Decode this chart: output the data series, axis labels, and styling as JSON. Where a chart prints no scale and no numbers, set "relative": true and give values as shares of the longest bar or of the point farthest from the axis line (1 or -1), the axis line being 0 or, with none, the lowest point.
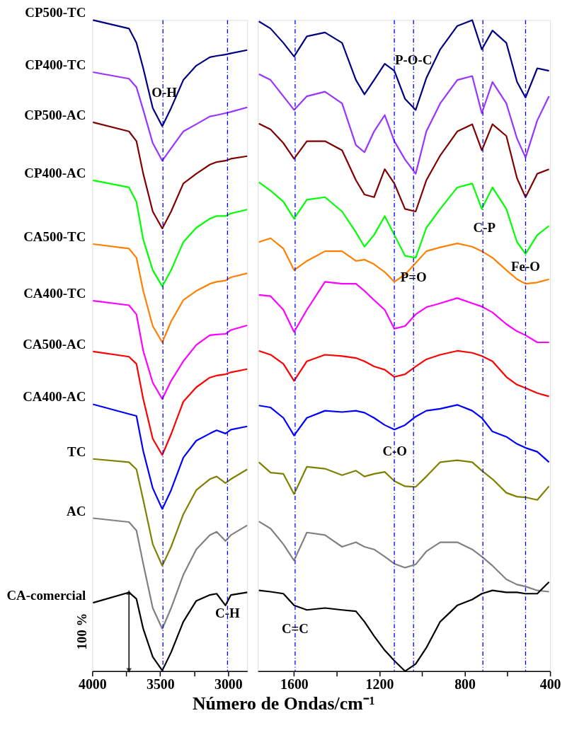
{
  "chart_data": [
    {
      "type": "line",
      "relative": true,
      "xlabel": "Número de Ondas/cm⁻¹",
      "tick_labels": "x",
      "xlim": [
        4000,
        2860
      ],
      "xticks": [
        4000,
        {
          "value": 3750,
          "label": null
        },
        3500,
        {
          "value": 3250,
          "label": null
        },
        3000
      ],
      "x": [
        3995,
        3730,
        3675,
        3625,
        3555,
        3485,
        3420,
        3330,
        3235,
        3135,
        3085,
        3020,
        2980,
        2860
      ],
      "series": [
        {
          "name": "CP500-TC",
          "color": "#000080",
          "values": [
            1.0,
            0.987,
            0.965,
            0.926,
            0.865,
            0.837,
            0.865,
            0.908,
            0.93,
            0.943,
            0.945,
            0.947,
            0.949,
            0.954
          ]
        },
        {
          "name": "CP400-TC",
          "color": "#9933ff",
          "values": [
            0.92,
            0.91,
            0.897,
            0.862,
            0.811,
            0.784,
            0.803,
            0.829,
            0.84,
            0.852,
            0.854,
            0.857,
            0.859,
            0.866
          ]
        },
        {
          "name": "CP500-AC",
          "color": "#800000",
          "values": [
            0.843,
            0.829,
            0.814,
            0.764,
            0.706,
            0.68,
            0.706,
            0.749,
            0.764,
            0.778,
            0.782,
            0.784,
            0.787,
            0.791
          ]
        },
        {
          "name": "CP400-AC",
          "color": "#00ff00",
          "values": [
            0.754,
            0.743,
            0.721,
            0.663,
            0.616,
            0.591,
            0.616,
            0.659,
            0.681,
            0.695,
            0.699,
            0.699,
            0.703,
            0.709
          ]
        },
        {
          "name": "CA500-TC",
          "color": "#ff8000",
          "values": [
            0.656,
            0.649,
            0.635,
            0.584,
            0.53,
            0.505,
            0.537,
            0.57,
            0.584,
            0.595,
            0.598,
            0.6,
            0.605,
            0.611
          ]
        },
        {
          "name": "CA400-TC",
          "color": "#ff00ff",
          "values": [
            0.569,
            0.562,
            0.548,
            0.492,
            0.443,
            0.418,
            0.446,
            0.476,
            0.501,
            0.516,
            0.517,
            0.518,
            0.524,
            0.531
          ]
        },
        {
          "name": "CA500-AC",
          "color": "#ff0000",
          "values": [
            0.491,
            0.483,
            0.472,
            0.418,
            0.357,
            0.332,
            0.364,
            0.414,
            0.436,
            0.451,
            0.454,
            0.456,
            0.459,
            0.464
          ]
        },
        {
          "name": "CA400-AC",
          "color": "#0000ff",
          "values": [
            0.41,
            0.395,
            0.392,
            0.338,
            0.281,
            0.249,
            0.278,
            0.328,
            0.354,
            0.365,
            0.37,
            0.365,
            0.371,
            0.376
          ]
        },
        {
          "name": "TC",
          "color": "#808000",
          "values": [
            0.326,
            0.321,
            0.31,
            0.263,
            0.195,
            0.162,
            0.191,
            0.241,
            0.278,
            0.295,
            0.299,
            0.289,
            0.295,
            0.31
          ]
        },
        {
          "name": "AC",
          "color": "#808080",
          "values": [
            0.235,
            0.229,
            0.216,
            0.165,
            0.097,
            0.065,
            0.097,
            0.148,
            0.187,
            0.209,
            0.214,
            0.2,
            0.209,
            0.224
          ]
        },
        {
          "name": "CA-comercial",
          "color": "#000000",
          "values": [
            0.105,
            0.121,
            0.111,
            0.065,
            0.022,
            0.001,
            0.029,
            0.076,
            0.108,
            0.117,
            0.119,
            0.101,
            0.117,
            0.121
          ]
        }
      ],
      "ref_lines": [
        {
          "axis": "x",
          "value": 3480,
          "color": "#0000ff",
          "line_style": "dashed"
        },
        {
          "axis": "x",
          "value": 3005,
          "color": "#0000ff",
          "line_style": "dashed"
        }
      ],
      "annotations": [
        {
          "text": "O-H",
          "x": 3470,
          "y": 0.889
        },
        {
          "text": "C-H",
          "x": 3005,
          "y": 0.089
        },
        "100 %"
      ]
    },
    {
      "type": "line",
      "relative": true,
      "tick_labels": "x",
      "xlim": [
        1770,
        400
      ],
      "xticks": [
        1600,
        {
          "value": 1400,
          "label": null
        },
        1200,
        {
          "value": 1000,
          "label": null
        },
        800,
        {
          "value": 600,
          "label": null
        },
        400
      ],
      "x": [
        1765,
        1710,
        1650,
        1600,
        1540,
        1455,
        1375,
        1310,
        1270,
        1225,
        1175,
        1130,
        1080,
        1030,
        980,
        915,
        835,
        765,
        720,
        670,
        605,
        555,
        515,
        460,
        405
      ],
      "series": [
        {
          "color": "#000080",
          "values": [
            0.998,
            0.987,
            0.965,
            0.944,
            0.975,
            0.981,
            0.965,
            0.908,
            0.886,
            0.908,
            0.933,
            0.922,
            0.879,
            0.862,
            0.911,
            0.955,
            0.991,
            1.0,
            0.955,
            0.984,
            0.965,
            0.905,
            0.881,
            0.926,
            0.922
          ]
        },
        {
          "color": "#9933ff",
          "values": [
            0.917,
            0.908,
            0.883,
            0.862,
            0.883,
            0.89,
            0.872,
            0.808,
            0.797,
            0.829,
            0.854,
            0.814,
            0.786,
            0.764,
            0.829,
            0.872,
            0.908,
            0.914,
            0.857,
            0.905,
            0.872,
            0.818,
            0.789,
            0.846,
            0.883
          ]
        },
        {
          "color": "#800000",
          "values": [
            0.841,
            0.832,
            0.811,
            0.787,
            0.814,
            0.814,
            0.8,
            0.754,
            0.732,
            0.728,
            0.771,
            0.749,
            0.71,
            0.706,
            0.754,
            0.792,
            0.829,
            0.84,
            0.8,
            0.84,
            0.822,
            0.757,
            0.728,
            0.764,
            0.771
          ]
        },
        {
          "color": "#00ff00",
          "values": [
            0.751,
            0.738,
            0.721,
            0.695,
            0.724,
            0.728,
            0.706,
            0.674,
            0.652,
            0.67,
            0.699,
            0.67,
            0.638,
            0.635,
            0.681,
            0.71,
            0.743,
            0.749,
            0.71,
            0.743,
            0.71,
            0.659,
            0.641,
            0.67,
            0.684
          ]
        },
        {
          "color": "#ff8000",
          "values": [
            0.659,
            0.665,
            0.649,
            0.616,
            0.63,
            0.645,
            0.645,
            0.63,
            0.632,
            0.625,
            0.613,
            0.598,
            0.609,
            0.627,
            0.645,
            0.651,
            0.657,
            0.652,
            0.645,
            0.635,
            0.616,
            0.602,
            0.595,
            0.597,
            0.602
          ]
        },
        {
          "color": "#ff00ff",
          "values": [
            0.578,
            0.576,
            0.555,
            0.521,
            0.555,
            0.598,
            0.595,
            0.595,
            0.584,
            0.57,
            0.555,
            0.526,
            0.53,
            0.548,
            0.559,
            0.565,
            0.573,
            0.565,
            0.56,
            0.551,
            0.533,
            0.522,
            0.516,
            0.505,
            0.505
          ]
        },
        {
          "color": "#ff0000",
          "values": [
            0.492,
            0.486,
            0.472,
            0.446,
            0.476,
            0.486,
            0.484,
            0.481,
            0.476,
            0.468,
            0.463,
            0.452,
            0.456,
            0.468,
            0.479,
            0.486,
            0.492,
            0.489,
            0.484,
            0.476,
            0.452,
            0.44,
            0.435,
            0.427,
            0.422
          ]
        },
        {
          "color": "#0000ff",
          "values": [
            0.408,
            0.405,
            0.389,
            0.362,
            0.389,
            0.4,
            0.398,
            0.4,
            0.397,
            0.389,
            0.378,
            0.371,
            0.378,
            0.391,
            0.4,
            0.403,
            0.409,
            0.4,
            0.389,
            0.368,
            0.36,
            0.349,
            0.343,
            0.337,
            0.321
          ]
        },
        {
          "color": "#808000",
          "values": [
            0.321,
            0.305,
            0.303,
            0.272,
            0.314,
            0.311,
            0.301,
            0.308,
            0.299,
            0.303,
            0.306,
            0.292,
            0.284,
            0.283,
            0.299,
            0.321,
            0.324,
            0.321,
            0.308,
            0.295,
            0.274,
            0.268,
            0.267,
            0.263,
            0.284
          ]
        },
        {
          "color": "#808080",
          "values": [
            0.23,
            0.219,
            0.195,
            0.17,
            0.213,
            0.209,
            0.191,
            0.198,
            0.191,
            0.187,
            0.176,
            0.165,
            0.159,
            0.164,
            0.184,
            0.198,
            0.198,
            0.187,
            0.176,
            0.162,
            0.141,
            0.133,
            0.13,
            0.124,
            0.122
          ]
        },
        {
          "color": "#000000",
          "values": [
            0.124,
            0.122,
            0.119,
            0.101,
            0.094,
            0.097,
            0.094,
            0.092,
            0.076,
            0.054,
            0.032,
            0.016,
            0.0,
            0.011,
            0.036,
            0.076,
            0.101,
            0.11,
            0.119,
            0.124,
            0.121,
            0.121,
            0.119,
            0.119,
            0.137
          ]
        }
      ],
      "ref_lines": [
        {
          "axis": "x",
          "value": 1595,
          "color": "#0000ff",
          "line_style": "dashed"
        },
        {
          "axis": "x",
          "value": 1130,
          "color": "#0000ff",
          "line_style": "dashed"
        },
        {
          "axis": "x",
          "value": 1040,
          "color": "#0000ff",
          "line_style": "dashed"
        },
        {
          "axis": "x",
          "value": 715,
          "color": "#0000ff",
          "line_style": "dashed"
        },
        {
          "axis": "x",
          "value": 515,
          "color": "#0000ff",
          "line_style": "dashed"
        }
      ],
      "annotations": [
        {
          "text": "C=C",
          "x": 1595,
          "y": 0.065
        },
        {
          "text": "P-O-C",
          "x": 1040,
          "y": 0.938
        },
        {
          "text": "P=O",
          "x": 1040,
          "y": 0.605
        },
        {
          "text": "C-P",
          "x": 708,
          "y": 0.681
        },
        {
          "text": "Fe-O",
          "x": 515,
          "y": 0.621
        },
        {
          "text": "C-O",
          "x": 1128,
          "y": 0.338
        }
      ]
    }
  ]
}
